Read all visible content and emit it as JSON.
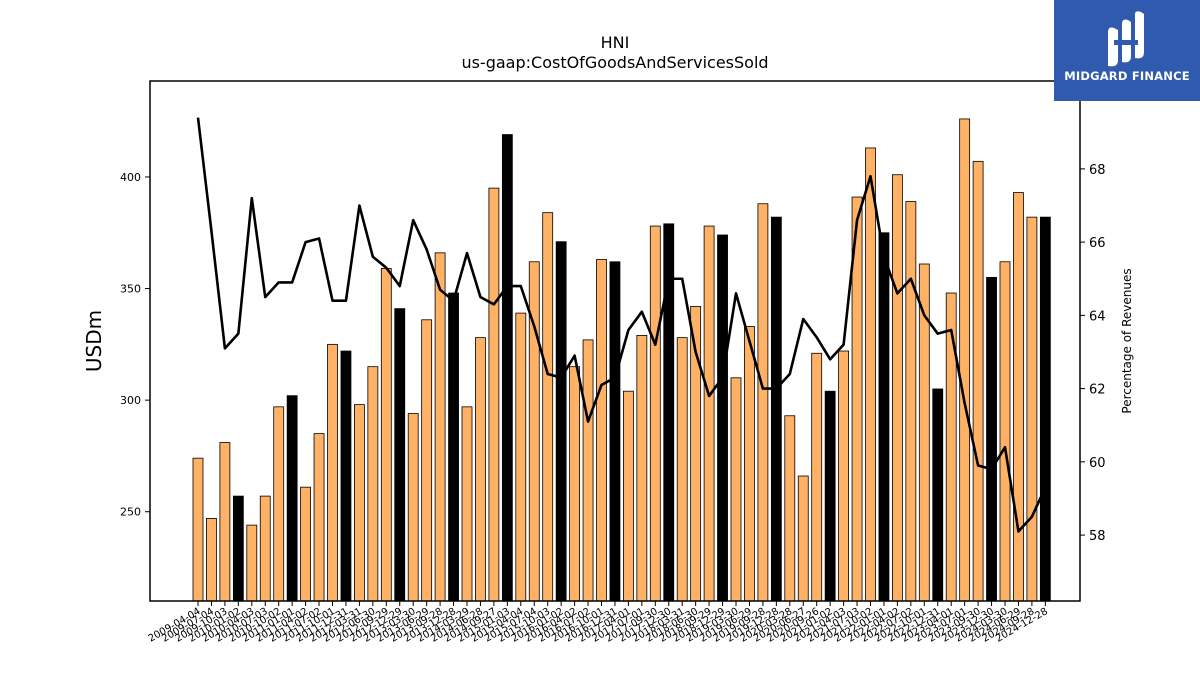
{
  "chart_data": {
    "type": "bar",
    "title": "HNI",
    "subtitle": "us-gaap:CostOfGoodsAndServicesSold",
    "ylabel": "USDm",
    "ylabel_right": "Percentage of Revenues",
    "ylim": [
      210,
      443
    ],
    "ylim_right": [
      56.2,
      70.4
    ],
    "yticks": [
      250,
      300,
      350,
      400
    ],
    "yticks_right": [
      58,
      60,
      62,
      64,
      66,
      68
    ],
    "grid": false,
    "colors": {
      "quarter_bar": "#ffb266",
      "annual_bar": "#000000",
      "line": "#000000"
    },
    "categories": [
      "2009-04-04",
      "2009-07-04",
      "2009-10-03",
      "2010-01-02",
      "2010-04-03",
      "2010-07-03",
      "2010-10-02",
      "2011-01-01",
      "2011-04-02",
      "2011-07-02",
      "2011-10-01",
      "2011-12-31",
      "2012-03-31",
      "2012-06-30",
      "2012-09-29",
      "2012-12-29",
      "2013-03-30",
      "2013-06-29",
      "2013-09-28",
      "2013-12-28",
      "2014-03-29",
      "2014-06-28",
      "2014-09-27",
      "2015-01-03",
      "2015-04-04",
      "2015-07-04",
      "2015-10-03",
      "2016-01-02",
      "2016-04-02",
      "2016-07-02",
      "2016-10-01",
      "2016-12-31",
      "2017-04-01",
      "2017-07-01",
      "2017-09-30",
      "2017-12-30",
      "2018-03-31",
      "2018-06-30",
      "2018-09-29",
      "2018-12-29",
      "2019-03-30",
      "2019-06-29",
      "2019-09-28",
      "2019-12-28",
      "2020-03-28",
      "2020-06-27",
      "2020-09-26",
      "2021-01-02",
      "2021-04-03",
      "2021-07-03",
      "2021-10-02",
      "2022-01-01",
      "2022-04-02",
      "2022-07-02",
      "2022-10-01",
      "2022-12-31",
      "2023-04-01",
      "2023-07-01",
      "2023-09-30",
      "2023-12-30",
      "2024-03-30",
      "2024-06-29",
      "2024-09-28",
      "2024-12-28"
    ],
    "series": [
      {
        "kind": "bar",
        "values": [
          274,
          247,
          281,
          257,
          244,
          257,
          297,
          302,
          261,
          285,
          325,
          322,
          298,
          315,
          359,
          341,
          294,
          336,
          366,
          348,
          297,
          328,
          395,
          419,
          339,
          362,
          384,
          371,
          315,
          327,
          363,
          362,
          304,
          329,
          378,
          379,
          328,
          342,
          378,
          374,
          310,
          333,
          388,
          382,
          293,
          266,
          321,
          304,
          322,
          391,
          413,
          375,
          401,
          389,
          361,
          305,
          348,
          426,
          407,
          355,
          362,
          393,
          382,
          382
        ],
        "annual": [
          false,
          false,
          false,
          true,
          false,
          false,
          false,
          true,
          false,
          false,
          false,
          true,
          false,
          false,
          false,
          true,
          false,
          false,
          false,
          true,
          false,
          false,
          false,
          true,
          false,
          false,
          false,
          true,
          false,
          false,
          false,
          true,
          false,
          false,
          false,
          true,
          false,
          false,
          false,
          true,
          false,
          false,
          false,
          true,
          false,
          false,
          false,
          true,
          false,
          false,
          false,
          true,
          false,
          false,
          false,
          true,
          false,
          false,
          false,
          true,
          false,
          false,
          false,
          true
        ]
      },
      {
        "kind": "line",
        "axis": "right",
        "values": [
          69.4,
          66.3,
          63.1,
          63.5,
          67.2,
          64.5,
          64.9,
          64.9,
          66.0,
          66.1,
          64.4,
          64.4,
          67.0,
          65.6,
          65.3,
          64.8,
          66.6,
          65.8,
          64.7,
          64.4,
          65.7,
          64.5,
          64.3,
          64.8,
          64.8,
          63.7,
          62.4,
          62.3,
          62.9,
          61.1,
          62.1,
          62.3,
          63.6,
          64.1,
          63.2,
          65.0,
          65.0,
          63.0,
          61.8,
          62.3,
          64.6,
          63.3,
          62.0,
          62.0,
          62.4,
          63.9,
          63.4,
          62.8,
          63.2,
          66.6,
          67.8,
          65.6,
          64.6,
          65.0,
          64.0,
          63.5,
          63.6,
          61.6,
          59.9,
          59.8,
          60.4,
          58.1,
          58.5,
          59.3
        ]
      }
    ]
  },
  "logo": {
    "text": "MIDGARD FINANCE",
    "icon": "midgard-logo-icon"
  }
}
